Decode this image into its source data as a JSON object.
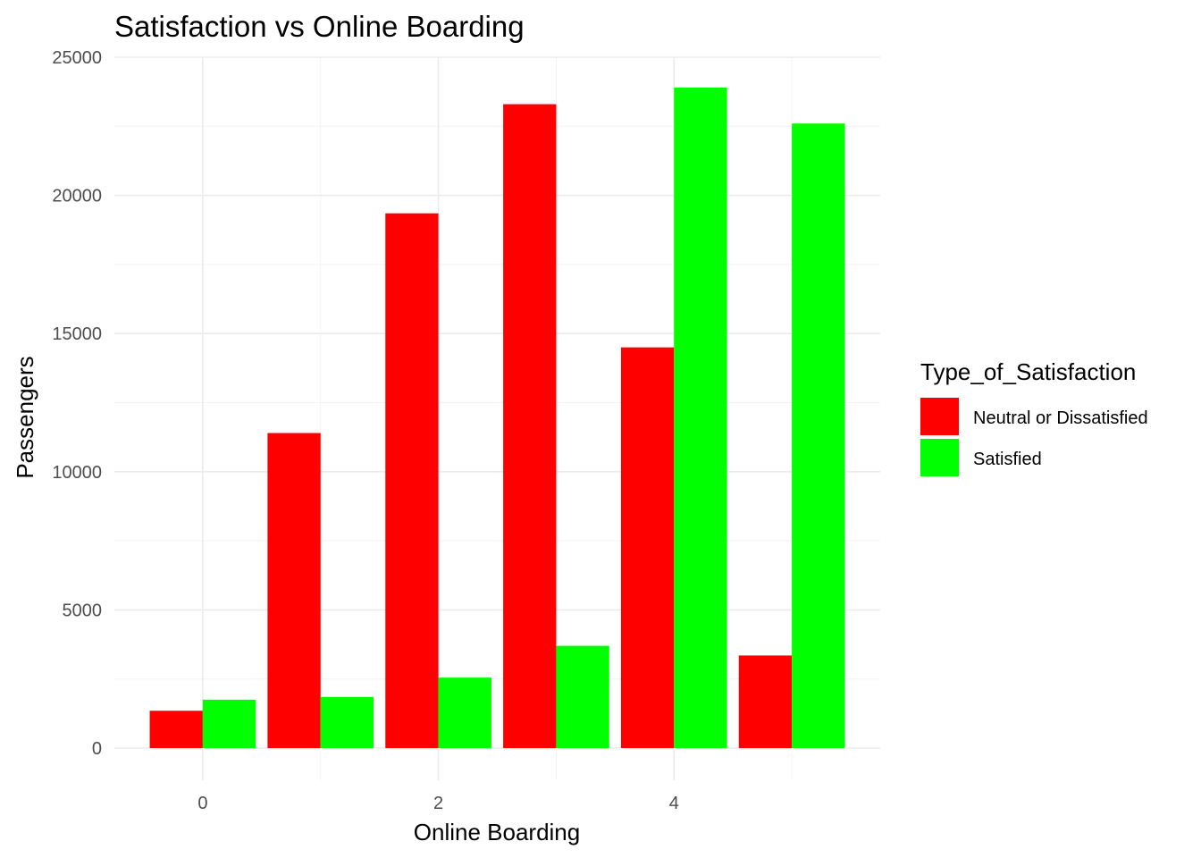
{
  "chart_data": {
    "type": "bar",
    "title": "Satisfaction vs Online Boarding",
    "xlabel": "Online Boarding",
    "ylabel": "Passengers",
    "x": [
      0,
      1,
      2,
      3,
      4,
      5
    ],
    "x_tick_labels": [
      "0",
      "2",
      "4"
    ],
    "x_tick_values": [
      0,
      2,
      4
    ],
    "y_tick_labels": [
      "0",
      "5000",
      "10000",
      "15000",
      "20000",
      "25000"
    ],
    "y_tick_values": [
      0,
      5000,
      10000,
      15000,
      20000,
      25000
    ],
    "ylim": [
      0,
      25000
    ],
    "xlim": [
      -0.75,
      5.75
    ],
    "legend_title": "Type_of_Satisfaction",
    "legend_position": "right",
    "grid": true,
    "series": [
      {
        "name": "Neutral or Dissatisfied",
        "color": "#ff0000",
        "values": [
          1350,
          11400,
          19350,
          23300,
          14500,
          3350
        ]
      },
      {
        "name": "Satisfied",
        "color": "#00ff00",
        "values": [
          1750,
          1850,
          2550,
          3700,
          23900,
          22600
        ]
      }
    ]
  }
}
